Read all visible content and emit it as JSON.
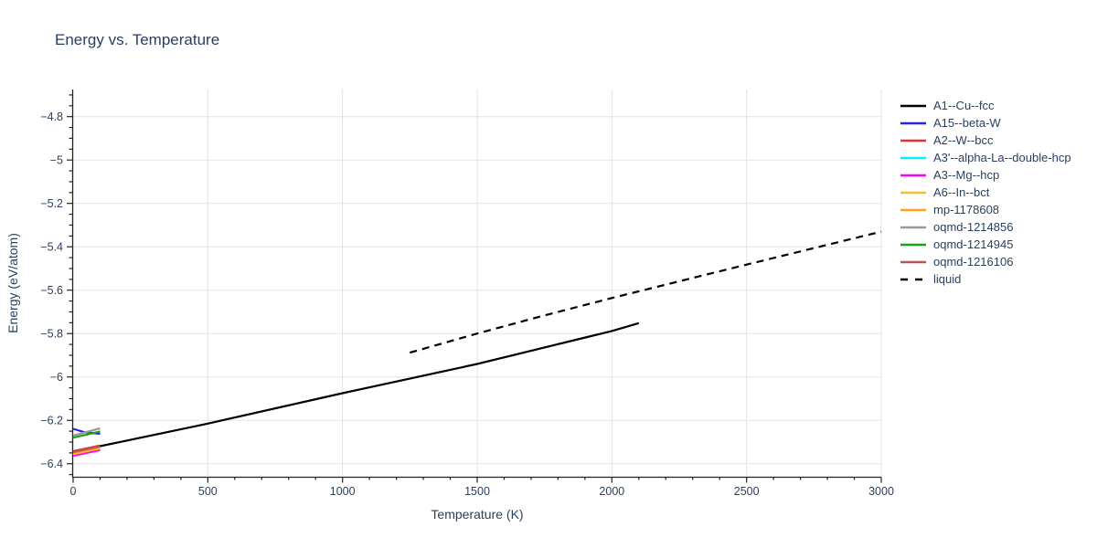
{
  "header": {
    "title": "Energy vs. Temperature"
  },
  "chart_data": {
    "type": "line",
    "title": "Energy vs. Temperature",
    "xlabel": "Temperature (K)",
    "ylabel": "Energy (eV/atom)",
    "xlim": [
      0,
      3000
    ],
    "ylim": [
      -6.46,
      -4.675
    ],
    "grid": true,
    "legend_position": "top-right",
    "background_color": "#ffffff",
    "grid_color": "#e3e3e3",
    "axis_color": "#222222",
    "text_color": "#2a3f5f",
    "x_ticks": {
      "values": [
        0,
        500,
        1000,
        1500,
        2000,
        2500,
        3000
      ],
      "labels": [
        "0",
        "500",
        "1000",
        "1500",
        "2000",
        "2500",
        "3000"
      ],
      "minor_step": 100
    },
    "y_ticks": {
      "values": [
        -6.4,
        -6.2,
        -6.0,
        -5.8,
        -5.6,
        -5.4,
        -5.2,
        -5.0,
        -4.8
      ],
      "labels": [
        "−6.4",
        "−6.2",
        "−6",
        "−5.8",
        "−5.6",
        "−5.4",
        "−5.2",
        "−5",
        "−4.8"
      ],
      "minor_step": 0.05
    },
    "series": [
      {
        "name": "A1--Cu--fcc",
        "color": "#000000",
        "dash": "solid",
        "points": [
          [
            0,
            -6.344
          ],
          [
            100,
            -6.319
          ],
          [
            500,
            -6.215
          ],
          [
            1000,
            -6.075
          ],
          [
            1500,
            -5.94
          ],
          [
            2000,
            -5.788
          ],
          [
            2100,
            -5.752
          ]
        ]
      },
      {
        "name": "A15--beta-W",
        "color": "#2424e6",
        "dash": "solid",
        "points": [
          [
            0,
            -6.239
          ],
          [
            40,
            -6.254
          ],
          [
            100,
            -6.262
          ]
        ]
      },
      {
        "name": "A2--W--bcc",
        "color": "#e63030",
        "dash": "solid",
        "points": [
          [
            0,
            -6.342
          ],
          [
            100,
            -6.316
          ]
        ]
      },
      {
        "name": "A3'--alpha-La--double-hcp",
        "color": "#00f0ff",
        "dash": "solid",
        "points": [
          [
            0,
            -6.361
          ],
          [
            100,
            -6.335
          ]
        ]
      },
      {
        "name": "A3--Mg--hcp",
        "color": "#ff00ff",
        "dash": "solid",
        "points": [
          [
            0,
            -6.363
          ],
          [
            100,
            -6.337
          ]
        ]
      },
      {
        "name": "A6--In--bct",
        "color": "#eec22f",
        "dash": "solid",
        "points": [
          [
            0,
            -6.356
          ],
          [
            100,
            -6.33
          ]
        ]
      },
      {
        "name": "mp-1178608",
        "color": "#ffa219",
        "dash": "solid",
        "points": [
          [
            0,
            -6.351
          ],
          [
            100,
            -6.325
          ]
        ]
      },
      {
        "name": "oqmd-1214856",
        "color": "#999999",
        "dash": "solid",
        "points": [
          [
            0,
            -6.27
          ],
          [
            100,
            -6.237
          ]
        ]
      },
      {
        "name": "oqmd-1214945",
        "color": "#17a317",
        "dash": "solid",
        "points": [
          [
            0,
            -6.28
          ],
          [
            100,
            -6.251
          ]
        ]
      },
      {
        "name": "oqmd-1216106",
        "color": "#b25555",
        "dash": "solid",
        "points": [
          [
            0,
            -6.346
          ],
          [
            100,
            -6.32
          ]
        ]
      },
      {
        "name": "liquid",
        "color": "#000000",
        "dash": "dash",
        "points": [
          [
            1250,
            -5.888
          ],
          [
            1500,
            -5.8
          ],
          [
            1750,
            -5.716
          ],
          [
            2000,
            -5.636
          ],
          [
            2500,
            -5.482
          ],
          [
            3000,
            -5.33
          ]
        ]
      }
    ]
  }
}
